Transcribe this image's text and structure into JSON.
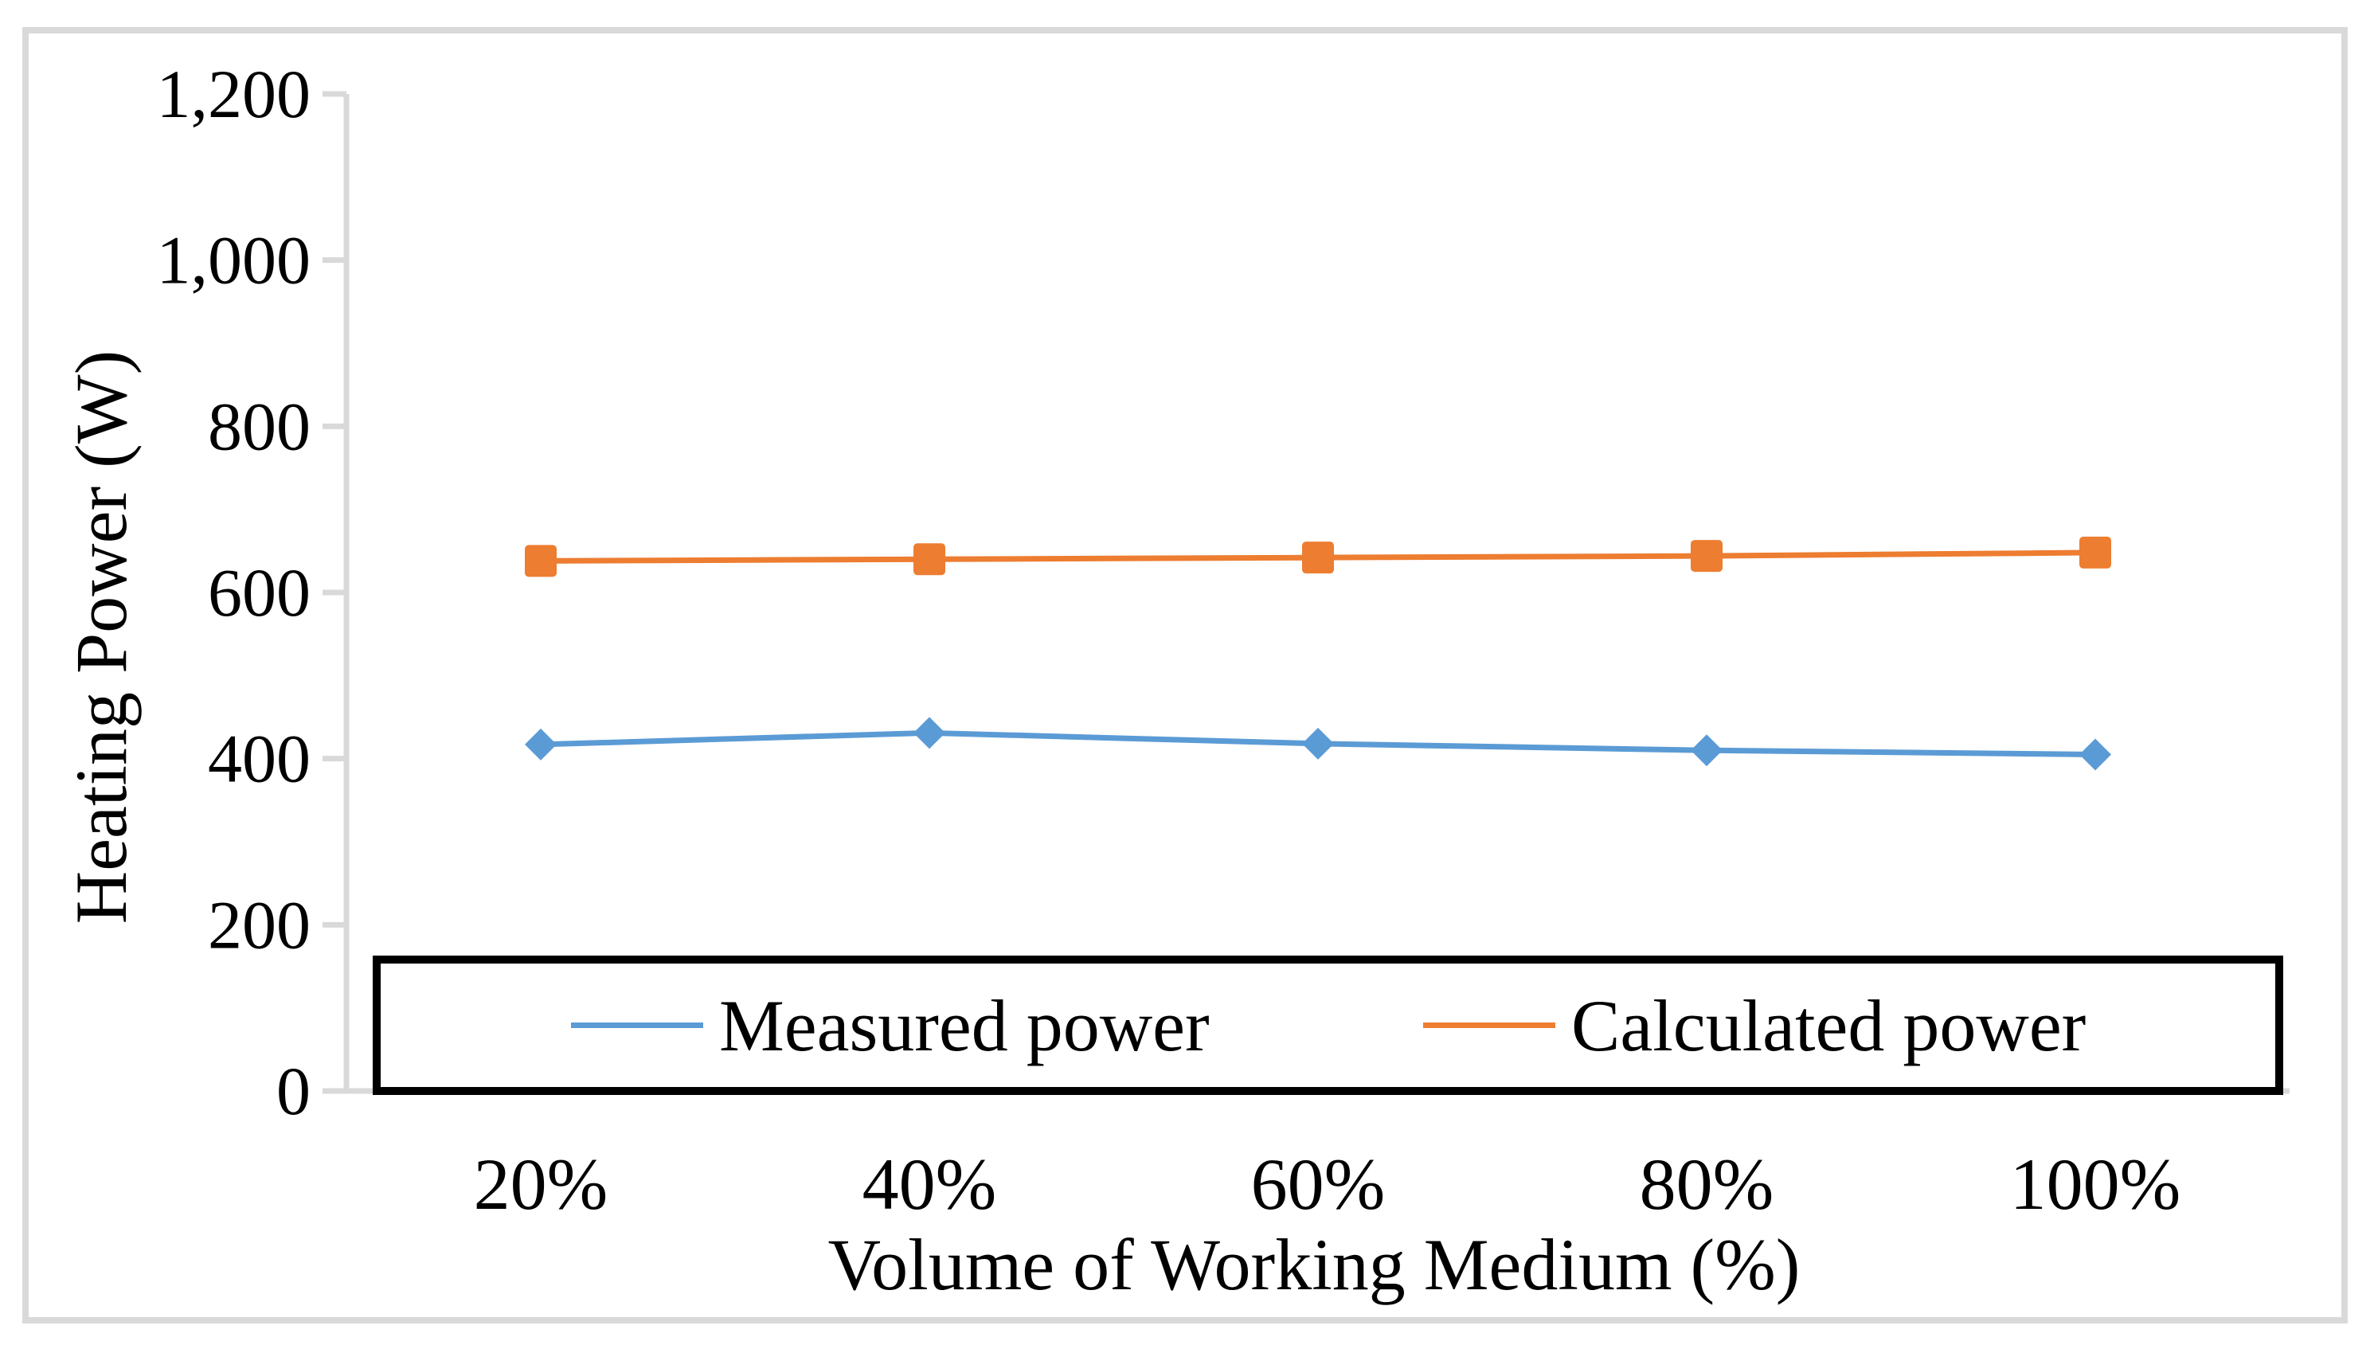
{
  "chart_data": {
    "type": "line",
    "title": "",
    "categories": [
      "20%",
      "40%",
      "60%",
      "80%",
      "100%"
    ],
    "series": [
      {
        "name": "Measured power",
        "marker": "diamond",
        "color": "#5B9BD5",
        "values": [
          417,
          431,
          418,
          410,
          405
        ]
      },
      {
        "name": "Calculated power",
        "marker": "square",
        "color": "#ED7D31",
        "values": [
          638,
          640,
          642,
          644,
          648
        ]
      }
    ],
    "xlabel": "Volume of Working Medium (%)",
    "ylabel": "Heating Power (W)",
    "ylim": [
      0,
      1200
    ],
    "yticks": [
      {
        "value": 0,
        "label": "0"
      },
      {
        "value": 200,
        "label": "200"
      },
      {
        "value": 400,
        "label": "400"
      },
      {
        "value": 600,
        "label": "600"
      },
      {
        "value": 800,
        "label": "800"
      },
      {
        "value": 1000,
        "label": "1,000"
      },
      {
        "value": 1200,
        "label": "1,200"
      }
    ],
    "grid": false,
    "legend_position": "bottom-inside-box"
  },
  "colors": {
    "axis": "#D9D9D9",
    "frame": "#D9D9D9",
    "text": "#000000",
    "legend_border": "#000000",
    "background": "#FFFFFF"
  }
}
